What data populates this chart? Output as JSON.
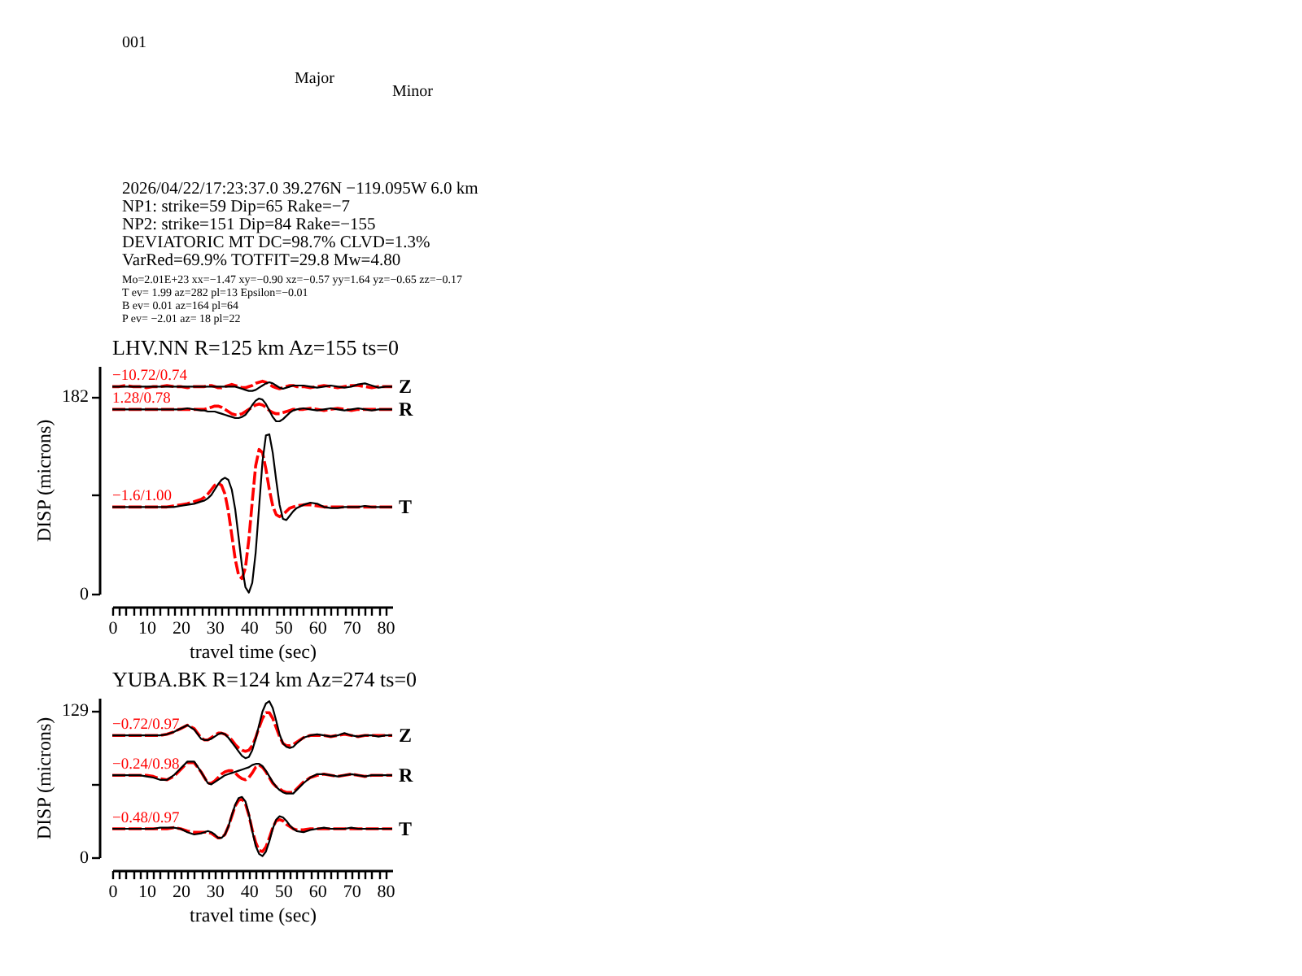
{
  "chart_data": [
    {
      "type": "line",
      "title": "LHV.NN R=125 km Az=155 ts=0",
      "xlabel": "travel time (sec)",
      "ylabel": "DISP (microns)",
      "x": [
        0,
        2,
        4,
        6,
        8,
        10,
        12,
        14,
        16,
        18,
        20,
        22,
        24,
        26,
        27,
        28,
        29,
        30,
        31,
        32,
        33,
        34,
        35,
        36,
        37,
        38,
        39,
        40,
        41,
        42,
        43,
        44,
        45,
        46,
        47,
        48,
        49,
        50,
        51,
        52,
        53,
        54,
        56,
        58,
        60,
        62,
        64,
        66,
        68,
        70,
        72,
        74,
        76,
        78,
        80,
        82
      ],
      "xlim": [
        0,
        82
      ],
      "ylim": [
        0,
        210
      ],
      "xticks": [
        0,
        {
          "value": 2,
          "label": null
        },
        {
          "value": 4,
          "label": null
        },
        {
          "value": 6,
          "label": null
        },
        {
          "value": 8,
          "label": null
        },
        10,
        {
          "value": 12,
          "label": null
        },
        {
          "value": 14,
          "label": null
        },
        {
          "value": 16,
          "label": null
        },
        {
          "value": 18,
          "label": null
        },
        20,
        {
          "value": 22,
          "label": null
        },
        {
          "value": 24,
          "label": null
        },
        {
          "value": 26,
          "label": null
        },
        {
          "value": 28,
          "label": null
        },
        30,
        {
          "value": 32,
          "label": null
        },
        {
          "value": 34,
          "label": null
        },
        {
          "value": 36,
          "label": null
        },
        {
          "value": 38,
          "label": null
        },
        40,
        {
          "value": 42,
          "label": null
        },
        {
          "value": 44,
          "label": null
        },
        {
          "value": 46,
          "label": null
        },
        {
          "value": 48,
          "label": null
        },
        50,
        {
          "value": 52,
          "label": null
        },
        {
          "value": 54,
          "label": null
        },
        {
          "value": 56,
          "label": null
        },
        {
          "value": 58,
          "label": null
        },
        60,
        {
          "value": 62,
          "label": null
        },
        {
          "value": 64,
          "label": null
        },
        {
          "value": 66,
          "label": null
        },
        {
          "value": 68,
          "label": null
        },
        70,
        {
          "value": 72,
          "label": null
        },
        {
          "value": 74,
          "label": null
        },
        {
          "value": 76,
          "label": null
        },
        {
          "value": 78,
          "label": null
        },
        80
      ],
      "yticks": [
        0,
        {
          "value": 91,
          "label": null
        },
        182
      ],
      "series": [
        {
          "name": "−10.72/0.74",
          "color": "#ff0000",
          "line_style": "dashed",
          "values": [
            191,
            191,
            192,
            191,
            191,
            190,
            191,
            191,
            192,
            191,
            191,
            190,
            191,
            191,
            191,
            192,
            192,
            191,
            190,
            190,
            191,
            192,
            193,
            192,
            191,
            190,
            190,
            191,
            192,
            194,
            195,
            196,
            195,
            193,
            191,
            190,
            189,
            190,
            191,
            192,
            192,
            191,
            191,
            190,
            191,
            192,
            191,
            190,
            191,
            192,
            192,
            191,
            190,
            191,
            191,
            191
          ]
        },
        {
          "name": "Z",
          "color": "#000000",
          "values": [
            191,
            191,
            191,
            191,
            191,
            191,
            191,
            191,
            191,
            191,
            191,
            191,
            191,
            191,
            191,
            191,
            191,
            191,
            191,
            191,
            191,
            191,
            191,
            191,
            190,
            189,
            188,
            187,
            187,
            188,
            190,
            192,
            194,
            195,
            194,
            192,
            190,
            189,
            190,
            191,
            192,
            192,
            192,
            191,
            190,
            191,
            192,
            191,
            190,
            191,
            193,
            194,
            192,
            190,
            191,
            191
          ]
        },
        {
          "name": "1.28/0.78",
          "color": "#ff0000",
          "line_style": "dashed",
          "values": [
            170,
            170,
            170,
            170,
            170,
            170,
            170,
            170,
            170,
            170,
            170,
            170,
            170,
            170,
            170,
            171,
            172,
            173,
            173,
            172,
            170,
            168,
            166,
            165,
            165,
            166,
            168,
            170,
            172,
            174,
            175,
            174,
            172,
            169,
            167,
            166,
            166,
            167,
            168,
            169,
            170,
            170,
            170,
            171,
            170,
            169,
            170,
            171,
            170,
            169,
            170,
            170,
            170,
            170,
            170,
            170
          ]
        },
        {
          "name": "R",
          "color": "#000000",
          "values": [
            170,
            170,
            170,
            170,
            170,
            170,
            170,
            170,
            170,
            170,
            170,
            171,
            170,
            169,
            169,
            168,
            168,
            168,
            167,
            166,
            165,
            164,
            163,
            162,
            162,
            163,
            165,
            169,
            174,
            178,
            180,
            179,
            175,
            169,
            163,
            159,
            159,
            161,
            164,
            167,
            169,
            170,
            171,
            170,
            169,
            170,
            171,
            170,
            169,
            170,
            171,
            170,
            169,
            170,
            170,
            170
          ]
        },
        {
          "name": "−1.6/1.00",
          "color": "#ff0000",
          "line_style": "dashed",
          "values": [
            80,
            80,
            80,
            80,
            80,
            80,
            80,
            80,
            80,
            81,
            82,
            83,
            85,
            87,
            89,
            92,
            96,
            100,
            102,
            100,
            92,
            76,
            54,
            32,
            17,
            14,
            24,
            50,
            85,
            118,
            133,
            130,
            115,
            96,
            81,
            73,
            71,
            73,
            76,
            79,
            80,
            81,
            82,
            82,
            81,
            80,
            80,
            80,
            80,
            80,
            80,
            80,
            80,
            80,
            80,
            80
          ]
        },
        {
          "name": "T",
          "color": "#000000",
          "values": [
            80,
            80,
            80,
            80,
            80,
            80,
            80,
            80,
            80,
            80,
            81,
            82,
            83,
            85,
            86,
            88,
            91,
            96,
            101,
            105,
            107,
            105,
            96,
            78,
            52,
            25,
            6,
            1,
            10,
            38,
            80,
            122,
            146,
            147,
            130,
            105,
            82,
            69,
            68,
            72,
            76,
            79,
            82,
            84,
            83,
            80,
            79,
            79,
            80,
            80,
            80,
            81,
            80,
            80,
            80,
            80
          ]
        }
      ],
      "annotations": [
        "001",
        "Major",
        "Minor",
        "2026/04/22/17:23:37.0 39.276N −119.095W 6.0 km",
        "NP1: strike=59 Dip=65 Rake=−7",
        "NP2: strike=151 Dip=84 Rake=−155",
        "DEVIATORIC MT DC=98.7% CLVD=1.3%",
        "VarRed=69.9% TOTFIT=29.8 Mw=4.80",
        "Mo=2.01E+23 xx=−1.47 xy=−0.90 xz=−0.57 yy=1.64 yz=−0.65 zz=−0.17",
        "T ev= 1.99 az=282 pl=13 Epsilon=−0.01",
        "B ev= 0.01 az=164 pl=64",
        "P ev= −2.01 az= 18 pl=22"
      ]
    },
    {
      "type": "line",
      "title": "YUBA.BK R=124 km Az=274 ts=0",
      "xlabel": "travel time (sec)",
      "ylabel": "DISP (microns)",
      "x": [
        0,
        2,
        4,
        6,
        8,
        10,
        12,
        14,
        16,
        18,
        20,
        22,
        24,
        26,
        27,
        28,
        29,
        30,
        31,
        32,
        33,
        34,
        35,
        36,
        37,
        38,
        39,
        40,
        41,
        42,
        43,
        44,
        45,
        46,
        47,
        48,
        49,
        50,
        51,
        52,
        53,
        54,
        56,
        58,
        60,
        62,
        64,
        66,
        68,
        70,
        72,
        74,
        76,
        78,
        80,
        82
      ],
      "xlim": [
        0,
        82
      ],
      "ylim": [
        0,
        140
      ],
      "xticks": [
        0,
        {
          "value": 2,
          "label": null
        },
        {
          "value": 4,
          "label": null
        },
        {
          "value": 6,
          "label": null
        },
        {
          "value": 8,
          "label": null
        },
        10,
        {
          "value": 12,
          "label": null
        },
        {
          "value": 14,
          "label": null
        },
        {
          "value": 16,
          "label": null
        },
        {
          "value": 18,
          "label": null
        },
        20,
        {
          "value": 22,
          "label": null
        },
        {
          "value": 24,
          "label": null
        },
        {
          "value": 26,
          "label": null
        },
        {
          "value": 28,
          "label": null
        },
        30,
        {
          "value": 32,
          "label": null
        },
        {
          "value": 34,
          "label": null
        },
        {
          "value": 36,
          "label": null
        },
        {
          "value": 38,
          "label": null
        },
        40,
        {
          "value": 42,
          "label": null
        },
        {
          "value": 44,
          "label": null
        },
        {
          "value": 46,
          "label": null
        },
        {
          "value": 48,
          "label": null
        },
        50,
        {
          "value": 52,
          "label": null
        },
        {
          "value": 54,
          "label": null
        },
        {
          "value": 56,
          "label": null
        },
        {
          "value": 58,
          "label": null
        },
        60,
        {
          "value": 62,
          "label": null
        },
        {
          "value": 64,
          "label": null
        },
        {
          "value": 66,
          "label": null
        },
        {
          "value": 68,
          "label": null
        },
        70,
        {
          "value": 72,
          "label": null
        },
        {
          "value": 74,
          "label": null
        },
        {
          "value": 76,
          "label": null
        },
        {
          "value": 78,
          "label": null
        },
        80
      ],
      "yticks": [
        0,
        {
          "value": 64.5,
          "label": null
        },
        129
      ],
      "series": [
        {
          "name": "−0.72/0.97",
          "color": "#ff0000",
          "line_style": "dashed",
          "values": [
            107,
            107,
            107,
            107,
            107,
            107,
            107,
            107,
            108,
            110,
            113,
            116,
            113,
            105,
            103,
            103,
            105,
            107,
            109,
            109,
            108,
            106,
            103,
            99,
            96,
            94,
            93,
            94,
            98,
            105,
            114,
            122,
            127,
            127,
            122,
            114,
            106,
            100,
            98,
            98,
            99,
            101,
            105,
            107,
            107,
            107,
            106,
            107,
            108,
            107,
            106,
            107,
            107,
            107,
            107,
            107
          ]
        },
        {
          "name": "Z",
          "color": "#000000",
          "values": [
            107,
            107,
            107,
            107,
            107,
            107,
            107,
            107,
            108,
            110,
            113,
            116,
            112,
            104,
            103,
            103,
            104,
            106,
            108,
            109,
            108,
            105,
            101,
            97,
            93,
            89,
            87,
            88,
            94,
            104,
            116,
            128,
            135,
            137,
            131,
            120,
            108,
            100,
            97,
            96,
            97,
            100,
            105,
            107,
            108,
            107,
            106,
            107,
            109,
            107,
            106,
            107,
            107,
            106,
            107,
            107
          ]
        },
        {
          "name": "−0.24/0.98",
          "color": "#ff0000",
          "line_style": "dashed",
          "values": [
            72,
            72,
            72,
            72,
            72,
            72,
            71,
            69,
            68,
            71,
            77,
            83,
            83,
            75,
            70,
            65,
            65,
            67,
            70,
            73,
            75,
            76,
            76,
            74,
            71,
            69,
            68,
            70,
            74,
            79,
            81,
            79,
            75,
            70,
            65,
            62,
            60,
            58,
            57,
            57,
            57,
            60,
            66,
            70,
            72,
            73,
            72,
            71,
            72,
            73,
            72,
            71,
            72,
            72,
            72,
            72
          ]
        },
        {
          "name": "R",
          "color": "#000000",
          "values": [
            72,
            72,
            72,
            72,
            72,
            71,
            70,
            68,
            68,
            72,
            78,
            84,
            84,
            75,
            70,
            65,
            64,
            66,
            68,
            70,
            72,
            73,
            74,
            75,
            76,
            77,
            78,
            79,
            81,
            82,
            82,
            80,
            76,
            71,
            66,
            62,
            59,
            57,
            56,
            56,
            56,
            59,
            65,
            70,
            73,
            73,
            72,
            71,
            72,
            73,
            72,
            71,
            72,
            72,
            72,
            72
          ]
        },
        {
          "name": "−0.48/0.97",
          "color": "#ff0000",
          "line_style": "dashed",
          "values": [
            25,
            25,
            25,
            25,
            25,
            25,
            25,
            25,
            25,
            26,
            25,
            23,
            22,
            22,
            22,
            22,
            21,
            19,
            17,
            17,
            20,
            27,
            36,
            45,
            50,
            51,
            47,
            37,
            24,
            13,
            6,
            5,
            9,
            17,
            26,
            32,
            33,
            32,
            29,
            27,
            25,
            24,
            24,
            25,
            25,
            25,
            25,
            25,
            25,
            25,
            25,
            25,
            25,
            25,
            25,
            25
          ]
        },
        {
          "name": "T",
          "color": "#000000",
          "values": [
            25,
            25,
            25,
            25,
            25,
            25,
            25,
            26,
            26,
            26,
            25,
            22,
            20,
            21,
            22,
            23,
            22,
            20,
            17,
            17,
            20,
            27,
            37,
            46,
            52,
            53,
            49,
            38,
            23,
            10,
            3,
            1,
            5,
            14,
            25,
            33,
            36,
            35,
            32,
            28,
            25,
            23,
            22,
            24,
            25,
            26,
            25,
            25,
            25,
            26,
            25,
            25,
            25,
            25,
            25,
            25
          ]
        }
      ]
    }
  ]
}
